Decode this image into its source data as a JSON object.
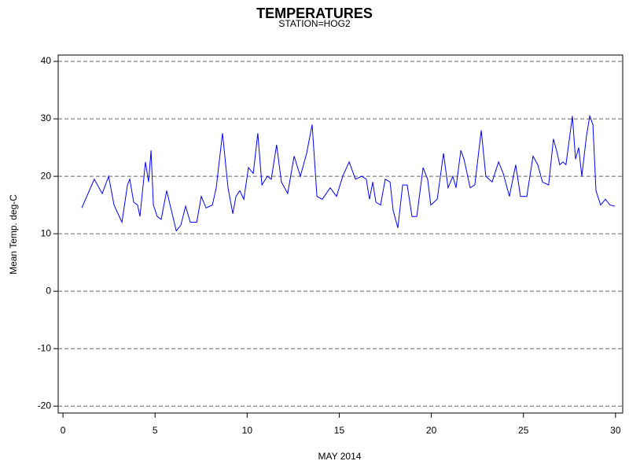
{
  "chart_data": {
    "type": "line",
    "title": "TEMPERATURES",
    "subtitle": "STATION=HOG2",
    "xlabel": "MAY 2014",
    "ylabel": "Mean Temp. deg-C",
    "xlim": [
      -0.26,
      30.39
    ],
    "ylim": [
      -21.2,
      41.1
    ],
    "xticks": [
      0,
      5,
      10,
      15,
      20,
      25,
      30
    ],
    "yticks": [
      -20,
      -10,
      0,
      10,
      20,
      30,
      40
    ],
    "grid": true,
    "series": [
      {
        "name": "Mean Temp",
        "color": "#0000ff",
        "x": [
          1.02,
          1.7,
          2.13,
          2.48,
          2.77,
          3.2,
          3.5,
          3.63,
          3.84,
          4.05,
          4.18,
          4.48,
          4.65,
          4.78,
          4.91,
          5.12,
          5.33,
          5.63,
          5.89,
          6.15,
          6.4,
          6.66,
          6.91,
          7.26,
          7.51,
          7.77,
          8.11,
          8.32,
          8.66,
          8.96,
          9.22,
          9.39,
          9.6,
          9.82,
          10.07,
          10.33,
          10.58,
          10.8,
          11.1,
          11.31,
          11.6,
          11.86,
          12.2,
          12.55,
          12.89,
          13.23,
          13.53,
          13.79,
          14.08,
          14.51,
          14.85,
          15.19,
          15.54,
          15.88,
          16.22,
          16.47,
          16.64,
          16.82,
          16.99,
          17.24,
          17.5,
          17.76,
          17.93,
          18.18,
          18.44,
          18.69,
          18.95,
          19.21,
          19.55,
          19.8,
          19.97,
          20.32,
          20.66,
          20.91,
          21.17,
          21.34,
          21.6,
          21.77,
          22.11,
          22.36,
          22.71,
          22.96,
          23.3,
          23.65,
          23.9,
          24.24,
          24.58,
          24.84,
          25.18,
          25.52,
          25.78,
          26.03,
          26.37,
          26.63,
          26.8,
          26.97,
          27.14,
          27.31,
          27.66,
          27.83,
          28.0,
          28.17,
          28.42,
          28.6,
          28.77,
          28.94,
          29.19,
          29.45,
          29.7,
          29.96
        ],
        "values": [
          14.5,
          19.5,
          17,
          20,
          15,
          12,
          18.5,
          19.5,
          15.5,
          15,
          13,
          22.5,
          19,
          24.5,
          15,
          13,
          12.5,
          17.5,
          14,
          10.5,
          11.5,
          14.8,
          12,
          12,
          16.5,
          14.5,
          15,
          18,
          27.5,
          18,
          13.5,
          16.5,
          17.5,
          16,
          21.5,
          20.5,
          27.5,
          18.5,
          20,
          19.5,
          25.5,
          19,
          17,
          23.5,
          20,
          24,
          29,
          16.5,
          16,
          18,
          16.5,
          20,
          22.5,
          19.5,
          20,
          19.5,
          16,
          19,
          15.5,
          15,
          19.5,
          19,
          14,
          11,
          18.5,
          18.5,
          13,
          13,
          21.5,
          19.5,
          15,
          16,
          24,
          18,
          20,
          18,
          24.5,
          23,
          18,
          18.5,
          28,
          20,
          19,
          22.5,
          20.5,
          16.5,
          22,
          16.5,
          16.5,
          23.5,
          22,
          19,
          18.5,
          26.5,
          24.5,
          22,
          22.5,
          22,
          30.5,
          23,
          25,
          20,
          27,
          30.5,
          29,
          17.5,
          15,
          16,
          15,
          14.8
        ]
      }
    ]
  }
}
